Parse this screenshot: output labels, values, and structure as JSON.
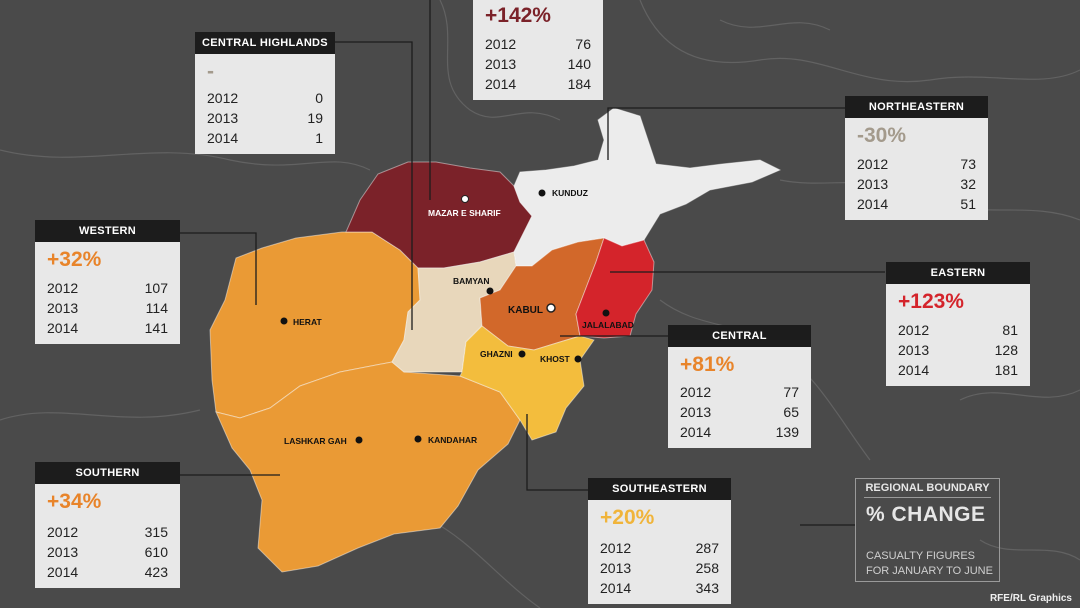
{
  "colors": {
    "background": "#4a4a4a",
    "western": "#ea9a35",
    "southern": "#ea9a35",
    "northern": "#7b2229",
    "northeastern": "#ececec",
    "eastern": "#d4242b",
    "central": "#d2682a",
    "central_highlands": "#e8d7bb",
    "southeastern": "#f3bd3d",
    "positive_text": "#e8842a",
    "northern_text": "#7b2229",
    "eastern_text": "#d4242b",
    "negative_text": "#a39a8c"
  },
  "regions": {
    "northern": {
      "name": "",
      "change": "+142%",
      "rows": [
        {
          "year": "2012",
          "value": "76"
        },
        {
          "year": "2013",
          "value": "140"
        },
        {
          "year": "2014",
          "value": "184"
        }
      ]
    },
    "central_highlands": {
      "name": "CENTRAL HIGHLANDS",
      "change": "-",
      "rows": [
        {
          "year": "2012",
          "value": "0"
        },
        {
          "year": "2013",
          "value": "19"
        },
        {
          "year": "2014",
          "value": "1"
        }
      ]
    },
    "northeastern": {
      "name": "NORTHEASTERN",
      "change": "-30%",
      "rows": [
        {
          "year": "2012",
          "value": "73"
        },
        {
          "year": "2013",
          "value": "32"
        },
        {
          "year": "2014",
          "value": "51"
        }
      ]
    },
    "western": {
      "name": "WESTERN",
      "change": "+32%",
      "rows": [
        {
          "year": "2012",
          "value": "107"
        },
        {
          "year": "2013",
          "value": "114"
        },
        {
          "year": "2014",
          "value": "141"
        }
      ]
    },
    "eastern": {
      "name": "EASTERN",
      "change": "+123%",
      "rows": [
        {
          "year": "2012",
          "value": "81"
        },
        {
          "year": "2013",
          "value": "128"
        },
        {
          "year": "2014",
          "value": "181"
        }
      ]
    },
    "central": {
      "name": "CENTRAL",
      "change": "+81%",
      "rows": [
        {
          "year": "2012",
          "value": "77"
        },
        {
          "year": "2013",
          "value": "65"
        },
        {
          "year": "2014",
          "value": "139"
        }
      ]
    },
    "southern": {
      "name": "SOUTHERN",
      "change": "+34%",
      "rows": [
        {
          "year": "2012",
          "value": "315"
        },
        {
          "year": "2013",
          "value": "610"
        },
        {
          "year": "2014",
          "value": "423"
        }
      ]
    },
    "southeastern": {
      "name": "SOUTHEASTERN",
      "change": "+20%",
      "rows": [
        {
          "year": "2012",
          "value": "287"
        },
        {
          "year": "2013",
          "value": "258"
        },
        {
          "year": "2014",
          "value": "343"
        }
      ]
    }
  },
  "cities": {
    "mazar": "MAZAR E SHARIF",
    "kunduz": "KUNDUZ",
    "bamyan": "BAMYAN",
    "kabul": "KABUL",
    "jalalabad": "JALALABAD",
    "herat": "HERAT",
    "ghazni": "GHAZNI",
    "khost": "KHOST",
    "lashkar": "LASHKAR GAH",
    "kandahar": "KANDAHAR"
  },
  "legend": {
    "boundary": "REGIONAL BOUNDARY",
    "change": "% CHANGE",
    "note": "CASUALTY FIGURES FOR JANUARY TO JUNE"
  },
  "credit": "RFE/RL Graphics"
}
